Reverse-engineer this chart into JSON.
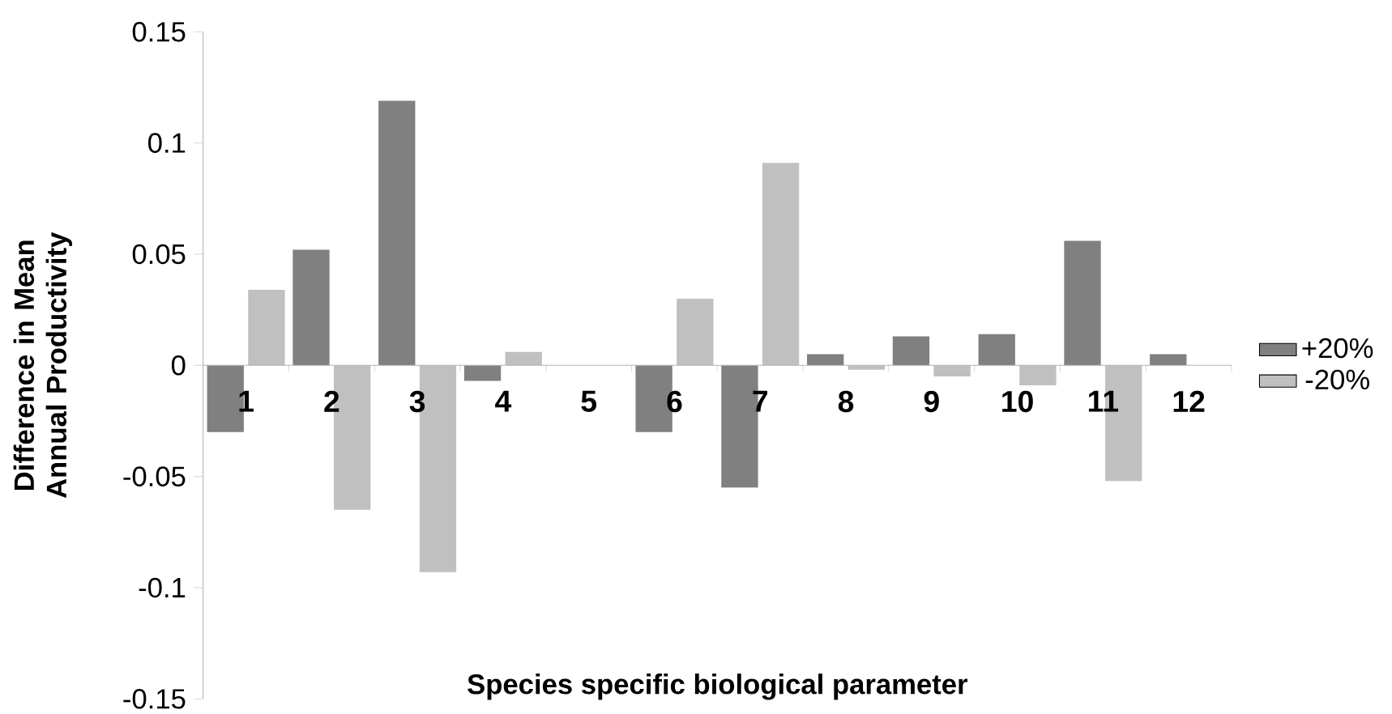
{
  "chart_data": {
    "type": "bar",
    "xlabel": "Species specific biological parameter",
    "ylabel": "Difference in Mean Annual Productivity",
    "categories": [
      "1",
      "2",
      "3",
      "4",
      "5",
      "6",
      "7",
      "8",
      "9",
      "10",
      "11",
      "12"
    ],
    "series": [
      {
        "name": "+20%",
        "color": "#808080",
        "values": [
          -0.03,
          0.052,
          0.119,
          -0.007,
          0,
          -0.03,
          -0.055,
          0.005,
          0.013,
          0.014,
          0.056,
          0.005
        ]
      },
      {
        "name": "-20%",
        "color": "#c0c0c0",
        "values": [
          0.034,
          -0.065,
          -0.093,
          0.006,
          0,
          0.03,
          0.091,
          -0.002,
          -0.005,
          -0.009,
          -0.052,
          null
        ]
      }
    ],
    "ylim": [
      -0.15,
      0.15
    ],
    "yticks": [
      -0.15,
      -0.1,
      -0.05,
      0,
      0.05,
      0.1,
      0.15
    ],
    "grid": false,
    "legend": "right"
  }
}
